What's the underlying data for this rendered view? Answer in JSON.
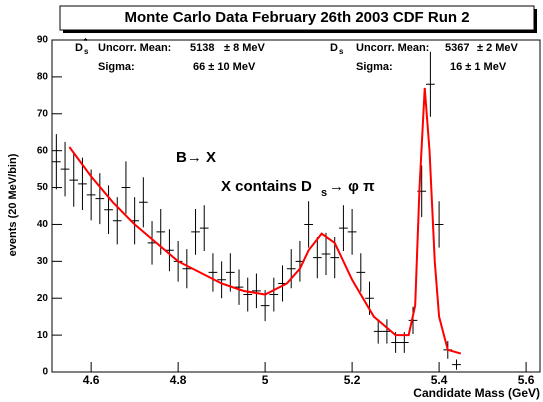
{
  "chart_data": {
    "type": "errorbar",
    "title": "Monte Carlo Data February 26th 2003   CDF Run 2",
    "xlabel": "Candidate Mass (GeV)",
    "ylabel": "events (20 MeV/bin)",
    "x": [
      4.52,
      4.54,
      4.56,
      4.58,
      4.6,
      4.62,
      4.64,
      4.66,
      4.68,
      4.7,
      4.72,
      4.74,
      4.76,
      4.78,
      4.8,
      4.82,
      4.84,
      4.86,
      4.88,
      4.9,
      4.92,
      4.94,
      4.96,
      4.98,
      5.0,
      5.02,
      5.04,
      5.06,
      5.08,
      5.1,
      5.12,
      5.14,
      5.16,
      5.18,
      5.2,
      5.22,
      5.24,
      5.26,
      5.28,
      5.3,
      5.32,
      5.34,
      5.36,
      5.38,
      5.4,
      5.42,
      5.44,
      5.46,
      5.48,
      5.5,
      5.52,
      5.54,
      5.56,
      5.58,
      5.6,
      5.62
    ],
    "values": [
      57,
      55,
      52,
      51,
      48,
      47,
      44,
      41,
      50,
      41,
      46,
      35,
      38,
      33,
      30,
      28,
      38,
      39,
      27,
      25,
      27,
      23,
      21,
      22,
      18,
      21,
      24,
      28,
      30,
      40,
      31,
      32,
      31,
      39,
      38,
      27,
      20,
      11,
      11,
      8,
      8,
      14,
      49,
      78,
      40,
      6,
      2,
      0,
      0,
      0,
      0,
      0,
      0,
      0,
      0,
      0
    ],
    "errors": [
      7.5,
      7.4,
      7.2,
      7.1,
      6.9,
      6.9,
      6.6,
      6.4,
      7.1,
      6.4,
      6.8,
      5.9,
      6.2,
      5.7,
      5.5,
      5.3,
      6.2,
      6.2,
      5.2,
      5,
      5.2,
      4.8,
      4.6,
      4.7,
      4.2,
      4.6,
      4.9,
      5.3,
      5.5,
      6.3,
      5.6,
      5.7,
      5.6,
      6.2,
      6.2,
      5.2,
      4.5,
      3.3,
      3.3,
      2.8,
      2.8,
      3.7,
      7,
      8.8,
      6.3,
      2.4,
      1.4,
      0,
      0,
      0,
      0,
      0,
      0,
      0,
      0,
      0
    ],
    "color": "#000000",
    "fit": {
      "color": "#ff0000",
      "x": [
        4.55,
        4.6,
        4.65,
        4.7,
        4.75,
        4.8,
        4.85,
        4.9,
        4.95,
        5.0,
        5.05,
        5.08,
        5.1,
        5.13,
        5.16,
        5.2,
        5.25,
        5.3,
        5.33,
        5.345,
        5.355,
        5.367,
        5.378,
        5.39,
        5.4,
        5.42,
        5.45
      ],
      "values": [
        61,
        53,
        46,
        40,
        35,
        30,
        27,
        24,
        22,
        21,
        24,
        28,
        33,
        37.5,
        35,
        25,
        15,
        10,
        10,
        18,
        50,
        77,
        60,
        30,
        15,
        6,
        5
      ]
    },
    "xlim": [
      4.51,
      5.632
    ],
    "ylim": [
      0,
      90
    ],
    "xticks": [
      4.6,
      4.8,
      5,
      5.2,
      5.4,
      5.6
    ],
    "yticks": [
      0,
      10,
      20,
      30,
      40,
      50,
      60,
      70,
      80,
      90
    ],
    "stats": [
      {
        "symbol": "D",
        "sup": "*",
        "sub": "s",
        "mean_label": "Uncorr. Mean:",
        "mean": "5138",
        "mean_err": "± 8 MeV",
        "sigma_label": "Sigma:",
        "sigma": "66 ± 10 MeV"
      },
      {
        "symbol": "D",
        "sub": "s",
        "mean_label": "Uncorr. Mean:",
        "mean": "5367",
        "mean_err": "± 2 MeV",
        "sigma_label": "Sigma:",
        "sigma": "16 ± 1 MeV"
      }
    ],
    "annotations": [
      {
        "text": "B→ X"
      },
      {
        "text": "X contains D",
        "sub": "s",
        "tail": "→ φ π"
      }
    ]
  }
}
